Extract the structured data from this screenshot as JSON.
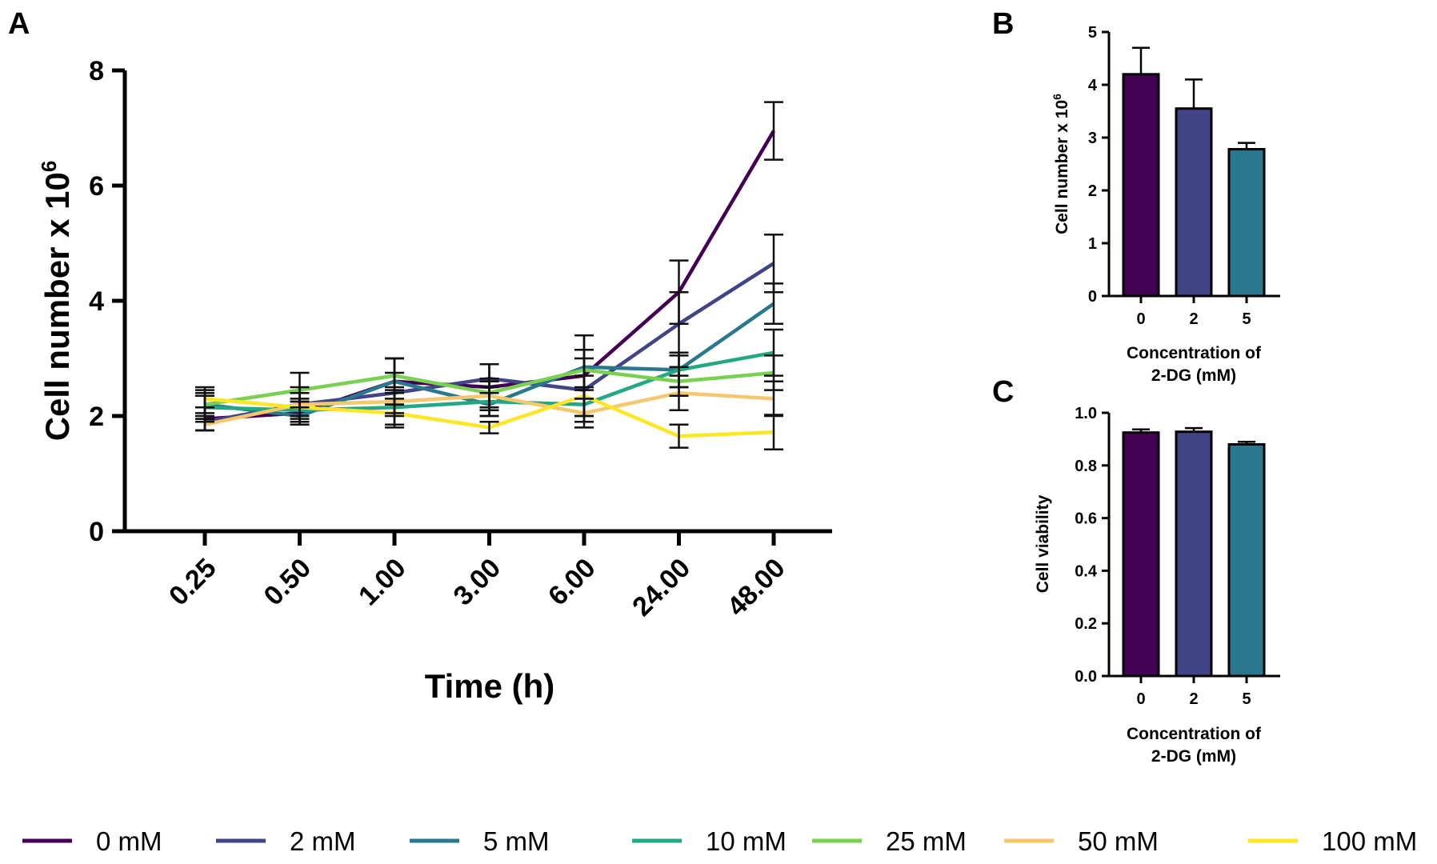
{
  "chart_data": [
    {
      "panel": "A",
      "type": "line",
      "xlabel": "Time (h)",
      "ylabel_main": "Cell number x 10",
      "ylabel_sup": "6",
      "categories": [
        "0.25",
        "0.50",
        "1.00",
        "3.00",
        "6.00",
        "24.00",
        "48.00"
      ],
      "ylim": [
        0,
        8
      ],
      "yticks": [
        "0",
        "2",
        "4",
        "6",
        "8"
      ],
      "series": [
        {
          "name": "0 mM",
          "color": "#440154",
          "values": [
            1.95,
            2.05,
            2.6,
            2.5,
            2.7,
            4.15,
            6.95
          ],
          "err": [
            0.2,
            0.2,
            0.4,
            0.4,
            0.7,
            0.55,
            0.5
          ]
        },
        {
          "name": "2 mM",
          "color": "#414487",
          "values": [
            1.9,
            2.2,
            2.4,
            2.65,
            2.45,
            3.6,
            4.65
          ],
          "err": [
            0.15,
            0.3,
            0.35,
            0.25,
            0.55,
            0.55,
            0.5
          ]
        },
        {
          "name": "5 mM",
          "color": "#2a788e",
          "values": [
            2.2,
            2.0,
            2.6,
            2.2,
            2.85,
            2.8,
            3.95
          ],
          "err": [
            0.2,
            0.15,
            0.4,
            0.2,
            0.55,
            0.3,
            0.35
          ]
        },
        {
          "name": "10 mM",
          "color": "#22a884",
          "values": [
            2.15,
            2.1,
            2.15,
            2.25,
            2.2,
            2.8,
            3.1
          ],
          "err": [
            0.2,
            0.15,
            0.3,
            0.25,
            0.3,
            0.3,
            0.4
          ]
        },
        {
          "name": "25 mM",
          "color": "#7ad151",
          "values": [
            2.2,
            2.45,
            2.7,
            2.4,
            2.8,
            2.6,
            2.75
          ],
          "err": [
            0.3,
            0.3,
            0.3,
            0.25,
            0.35,
            0.25,
            0.3
          ]
        },
        {
          "name": "50 mM",
          "color": "#f5c86e",
          "values": [
            1.85,
            2.2,
            2.25,
            2.35,
            2.05,
            2.4,
            2.3
          ],
          "err": [
            0.1,
            0.2,
            0.25,
            0.25,
            0.25,
            0.3,
            0.3
          ]
        },
        {
          "name": "100 mM",
          "color": "#fde725",
          "values": [
            2.3,
            2.15,
            2.05,
            1.8,
            2.35,
            1.65,
            1.72
          ],
          "err": [
            0.15,
            0.15,
            0.25,
            0.1,
            0.35,
            0.2,
            0.3
          ]
        }
      ]
    },
    {
      "panel": "B",
      "type": "bar",
      "xlabel_lines": [
        "Concentration of",
        "2-DG (mM)"
      ],
      "ylabel_main": "Cell number x 10",
      "ylabel_sup": "6",
      "categories": [
        "0",
        "2",
        "5"
      ],
      "values": [
        4.2,
        3.55,
        2.78
      ],
      "err": [
        0.5,
        0.55,
        0.12
      ],
      "colors": [
        "#440154",
        "#414487",
        "#2a788e"
      ],
      "ylim": [
        0,
        5
      ],
      "yticks": [
        "0",
        "1",
        "2",
        "3",
        "4",
        "5"
      ]
    },
    {
      "panel": "C",
      "type": "bar",
      "xlabel_lines": [
        "Concentration of",
        "2-DG (mM)"
      ],
      "ylabel": "Cell viability",
      "categories": [
        "0",
        "2",
        "5"
      ],
      "values": [
        0.925,
        0.928,
        0.88
      ],
      "err": [
        0.012,
        0.014,
        0.01
      ],
      "colors": [
        "#440154",
        "#414487",
        "#2a788e"
      ],
      "ylim": [
        0,
        1.0
      ],
      "yticks": [
        "0.0",
        "0.2",
        "0.4",
        "0.6",
        "0.8",
        "1.0"
      ]
    }
  ],
  "legend": [
    {
      "label": "0 mM",
      "color": "#440154"
    },
    {
      "label": "2 mM",
      "color": "#414487"
    },
    {
      "label": "5 mM",
      "color": "#2a788e"
    },
    {
      "label": "10 mM",
      "color": "#22a884"
    },
    {
      "label": "25 mM",
      "color": "#7ad151"
    },
    {
      "label": "50 mM",
      "color": "#f5c86e"
    },
    {
      "label": "100 mM",
      "color": "#fde725"
    }
  ]
}
